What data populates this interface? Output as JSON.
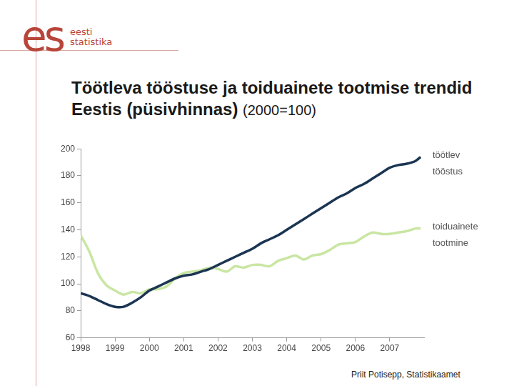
{
  "chart_data": {
    "type": "line",
    "title": "Töötleva tööstuse ja toiduainete tootmise trendid Eestis (püsivhinnas)",
    "subtitle": "(2000=100)",
    "x": [
      1998,
      1998.25,
      1998.5,
      1998.75,
      1999,
      1999.25,
      1999.5,
      1999.75,
      2000,
      2000.25,
      2000.5,
      2000.75,
      2001,
      2001.25,
      2001.5,
      2001.75,
      2002,
      2002.25,
      2002.5,
      2002.75,
      2003,
      2003.25,
      2003.5,
      2003.75,
      2004,
      2004.25,
      2004.5,
      2004.75,
      2005,
      2005.25,
      2005.5,
      2005.75,
      2006,
      2006.25,
      2006.5,
      2006.75,
      2007,
      2007.25,
      2007.5,
      2007.75,
      2007.9
    ],
    "series": [
      {
        "name": "töötlev tööstus",
        "color": "#1b3553",
        "values": [
          93,
          91,
          88,
          85,
          83,
          83,
          86,
          90,
          95,
          98,
          101,
          104,
          106,
          107,
          109,
          111,
          114,
          117,
          120,
          123,
          126,
          130,
          133,
          136,
          140,
          144,
          148,
          152,
          156,
          160,
          164,
          167,
          171,
          174,
          178,
          182,
          186,
          188,
          189,
          191,
          194
        ]
      },
      {
        "name": "toiduainete tootmine",
        "color": "#c9e6a3",
        "values": [
          136,
          124,
          108,
          99,
          95,
          92,
          94,
          93,
          96,
          96,
          98,
          104,
          108,
          109,
          110,
          112,
          111,
          109,
          113,
          112,
          114,
          114,
          113,
          117,
          119,
          121,
          118,
          121,
          122,
          125,
          129,
          130,
          131,
          135,
          138,
          137,
          137,
          138,
          139,
          141,
          141
        ]
      }
    ],
    "xlim": [
      1998,
      2008
    ],
    "xticks": [
      1998,
      1999,
      2000,
      2001,
      2002,
      2003,
      2004,
      2005,
      2006,
      2007
    ],
    "ylim": [
      60,
      200
    ],
    "yticks": [
      60,
      80,
      100,
      120,
      140,
      160,
      180,
      200
    ],
    "grid": false
  },
  "logo": {
    "mark": "es",
    "lines": [
      "eesti",
      "statistika"
    ]
  },
  "footer": "Priit Potisepp, Statistikaamet"
}
